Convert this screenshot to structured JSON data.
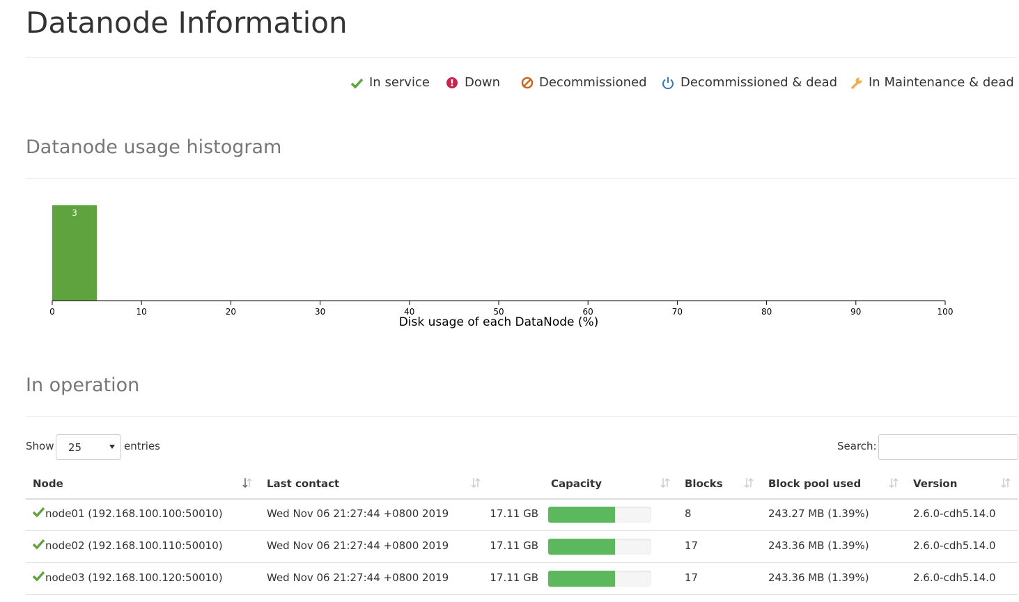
{
  "header": {
    "title": "Datanode Information"
  },
  "legend": [
    "In service",
    "Down",
    "Decommissioned",
    "Decommissioned & dead",
    "In Maintenance & dead"
  ],
  "histogram_heading": "Datanode usage histogram",
  "chart_data": {
    "type": "histogram",
    "bins": [
      0,
      5
    ],
    "counts": [
      3
    ],
    "color": "#5fa33e",
    "xlim": [
      0,
      100
    ],
    "xticks": [
      0,
      10,
      20,
      30,
      40,
      50,
      60,
      70,
      80,
      90,
      100
    ],
    "x_label": "Disk usage of each DataNode (%)"
  },
  "operation": {
    "heading": "In operation",
    "show": "Show",
    "page_size": 25,
    "entries": "entries",
    "search": "Search:",
    "columns": [
      "Node",
      "Last contact",
      "Capacity",
      "Blocks",
      "Block pool used",
      "Version"
    ],
    "rows": [
      {
        "node": "node01 (192.168.100.100:50010)",
        "last_contact": "Wed Nov 06 21:27:44 +0800 2019",
        "capacity": "17.11 GB",
        "used_percent": 65,
        "blocks": 8,
        "block_pool_used": "243.27 MB (1.39%)",
        "version": "2.6.0-cdh5.14.0"
      },
      {
        "node": "node02 (192.168.100.110:50010)",
        "last_contact": "Wed Nov 06 21:27:44 +0800 2019",
        "capacity": "17.11 GB",
        "used_percent": 65,
        "blocks": 17,
        "block_pool_used": "243.36 MB (1.39%)",
        "version": "2.6.0-cdh5.14.0"
      },
      {
        "node": "node03 (192.168.100.120:50010)",
        "last_contact": "Wed Nov 06 21:27:44 +0800 2019",
        "capacity": "17.11 GB",
        "used_percent": 65,
        "blocks": 17,
        "block_pool_used": "243.36 MB (1.39%)",
        "version": "2.6.0-cdh5.14.0"
      }
    ]
  }
}
